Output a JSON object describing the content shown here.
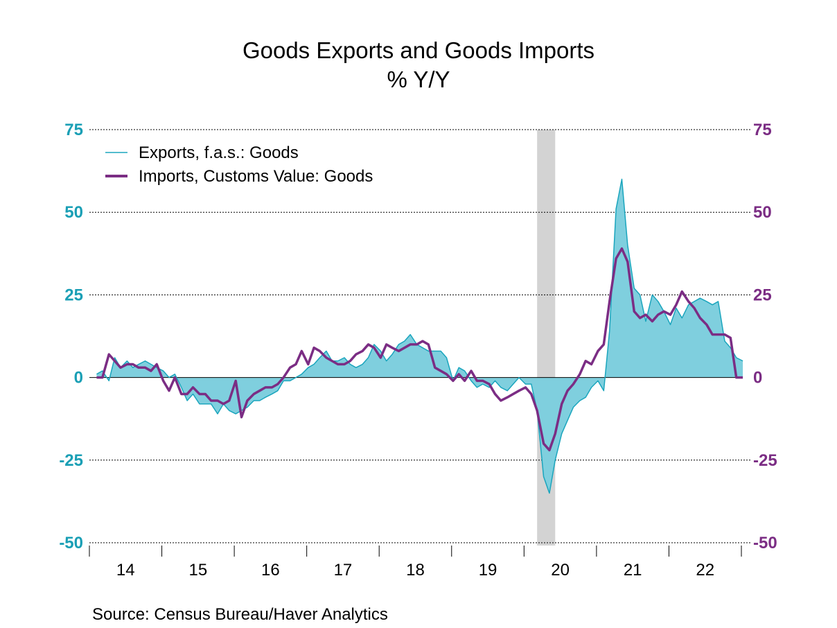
{
  "chart_data": {
    "type": "area",
    "title": "Goods Exports and Goods Imports",
    "subtitle": "% Y/Y",
    "source": "Source:  Census Bureau/Haver Analytics",
    "ylim": [
      -50,
      75
    ],
    "yticks": [
      75,
      50,
      25,
      0,
      -25,
      -50
    ],
    "ytick_labels_left": [
      "75",
      "50",
      "25",
      "0",
      "-25",
      "-50"
    ],
    "ytick_labels_right": [
      "75",
      "50",
      "25",
      "0",
      "-25",
      "-50"
    ],
    "xlim": [
      2013.9,
      2022.9
    ],
    "x_tick_labels": [
      "14",
      "15",
      "16",
      "17",
      "18",
      "19",
      "20",
      "21",
      "22"
    ],
    "grid": "horizontal dotted",
    "legend_position": "top-left",
    "recession_band": [
      2020.08,
      2020.33
    ],
    "colors": {
      "exports_line": "#1aa5bd",
      "exports_fill": "#7fcfde",
      "imports_line": "#7b2d84",
      "left_axis": "#1a9fb5",
      "right_axis": "#7b2d84",
      "recession": "#d3d3d3"
    },
    "series": [
      {
        "name": "Exports, f.a.s.: Goods",
        "style": "thin line with filled area",
        "x": [
          2014.0,
          2014.08,
          2014.17,
          2014.25,
          2014.33,
          2014.42,
          2014.5,
          2014.58,
          2014.67,
          2014.75,
          2014.83,
          2014.92,
          2015.0,
          2015.08,
          2015.17,
          2015.25,
          2015.33,
          2015.42,
          2015.5,
          2015.58,
          2015.67,
          2015.75,
          2015.83,
          2015.92,
          2016.0,
          2016.08,
          2016.17,
          2016.25,
          2016.33,
          2016.42,
          2016.5,
          2016.58,
          2016.67,
          2016.75,
          2016.83,
          2016.92,
          2017.0,
          2017.08,
          2017.17,
          2017.25,
          2017.33,
          2017.42,
          2017.5,
          2017.58,
          2017.67,
          2017.75,
          2017.83,
          2017.92,
          2018.0,
          2018.08,
          2018.17,
          2018.25,
          2018.33,
          2018.42,
          2018.5,
          2018.58,
          2018.67,
          2018.75,
          2018.83,
          2018.92,
          2019.0,
          2019.08,
          2019.17,
          2019.25,
          2019.33,
          2019.42,
          2019.5,
          2019.58,
          2019.67,
          2019.75,
          2019.83,
          2019.92,
          2020.0,
          2020.08,
          2020.17,
          2020.25,
          2020.33,
          2020.42,
          2020.5,
          2020.58,
          2020.67,
          2020.75,
          2020.83,
          2020.92,
          2021.0,
          2021.08,
          2021.17,
          2021.25,
          2021.33,
          2021.42,
          2021.5,
          2021.58,
          2021.67,
          2021.75,
          2021.83,
          2021.92,
          2022.0,
          2022.08,
          2022.17,
          2022.25,
          2022.33,
          2022.42,
          2022.5,
          2022.58,
          2022.67,
          2022.75,
          2022.83,
          2022.92
        ],
        "values": [
          1,
          2,
          -1,
          6,
          3,
          5,
          3,
          4,
          5,
          4,
          3,
          2,
          0,
          1,
          -3,
          -7,
          -5,
          -8,
          -8,
          -8,
          -11,
          -8,
          -10,
          -11,
          -10,
          -9,
          -7,
          -7,
          -6,
          -5,
          -4,
          -1,
          -1,
          0,
          1,
          3,
          4,
          6,
          8,
          5,
          5,
          6,
          4,
          3,
          4,
          6,
          10,
          8,
          5,
          7,
          10,
          11,
          13,
          10,
          9,
          8,
          8,
          8,
          6,
          -1,
          3,
          2,
          -1,
          -3,
          -2,
          -3,
          -1,
          -3,
          -4,
          -2,
          0,
          -2,
          -2,
          -10,
          -30,
          -35,
          -25,
          -17,
          -13,
          -9,
          -7,
          -6,
          -3,
          -1,
          -4,
          14,
          51,
          60,
          40,
          27,
          25,
          17,
          25,
          23,
          20,
          16,
          21,
          18,
          22,
          23,
          24,
          23,
          22,
          23,
          11,
          9,
          6,
          5
        ]
      },
      {
        "name": "Imports, Customs Value: Goods",
        "style": "thick line",
        "x": [
          2014.0,
          2014.08,
          2014.17,
          2014.25,
          2014.33,
          2014.42,
          2014.5,
          2014.58,
          2014.67,
          2014.75,
          2014.83,
          2014.92,
          2015.0,
          2015.08,
          2015.17,
          2015.25,
          2015.33,
          2015.42,
          2015.5,
          2015.58,
          2015.67,
          2015.75,
          2015.83,
          2015.92,
          2016.0,
          2016.08,
          2016.17,
          2016.25,
          2016.33,
          2016.42,
          2016.5,
          2016.58,
          2016.67,
          2016.75,
          2016.83,
          2016.92,
          2017.0,
          2017.08,
          2017.17,
          2017.25,
          2017.33,
          2017.42,
          2017.5,
          2017.58,
          2017.67,
          2017.75,
          2017.83,
          2017.92,
          2018.0,
          2018.08,
          2018.17,
          2018.25,
          2018.33,
          2018.42,
          2018.5,
          2018.58,
          2018.67,
          2018.75,
          2018.83,
          2018.92,
          2019.0,
          2019.08,
          2019.17,
          2019.25,
          2019.33,
          2019.42,
          2019.5,
          2019.58,
          2019.67,
          2019.75,
          2019.83,
          2019.92,
          2020.0,
          2020.08,
          2020.17,
          2020.25,
          2020.33,
          2020.42,
          2020.5,
          2020.58,
          2020.67,
          2020.75,
          2020.83,
          2020.92,
          2021.0,
          2021.08,
          2021.17,
          2021.25,
          2021.33,
          2021.42,
          2021.5,
          2021.58,
          2021.67,
          2021.75,
          2021.83,
          2021.92,
          2022.0,
          2022.08,
          2022.17,
          2022.25,
          2022.33,
          2022.42,
          2022.5,
          2022.58,
          2022.67,
          2022.75,
          2022.83,
          2022.92
        ],
        "values": [
          0,
          0,
          7,
          5,
          3,
          4,
          4,
          3,
          3,
          2,
          4,
          -1,
          -4,
          0,
          -5,
          -5,
          -3,
          -5,
          -5,
          -7,
          -7,
          -8,
          -7,
          -1,
          -12,
          -7,
          -5,
          -4,
          -3,
          -3,
          -2,
          0,
          3,
          4,
          8,
          4,
          9,
          8,
          6,
          5,
          4,
          4,
          5,
          7,
          8,
          10,
          9,
          6,
          10,
          9,
          8,
          9,
          10,
          10,
          11,
          10,
          3,
          2,
          1,
          -1,
          1,
          -1,
          2,
          -1,
          -1,
          -2,
          -5,
          -7,
          -6,
          -5,
          -4,
          -3,
          -5,
          -10,
          -20,
          -22,
          -17,
          -8,
          -4,
          -2,
          1,
          5,
          4,
          8,
          10,
          23,
          36,
          39,
          35,
          20,
          18,
          19,
          17,
          19,
          20,
          19,
          22,
          26,
          23,
          21,
          18,
          16,
          13,
          13,
          13,
          12,
          0,
          0
        ]
      }
    ]
  }
}
